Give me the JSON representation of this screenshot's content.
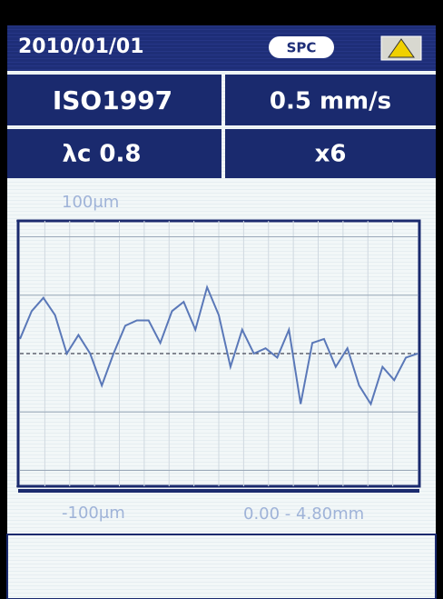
{
  "header": {
    "date": "2010/01/01",
    "mode": "SPC"
  },
  "settings": {
    "standard": "ISO1997",
    "speed": "0.5 mm/s",
    "cutoff": "λc 0.8",
    "cutoff_count": "x6"
  },
  "profile": {
    "ylim": [
      -100,
      100
    ],
    "yticks": [
      {
        "value": 100,
        "label": "100μm"
      },
      {
        "value": -100,
        "label": "-100μm"
      }
    ],
    "x_range": "0.00 - 4.80mm",
    "color": "#5a78b8",
    "values": [
      11,
      32,
      42,
      29,
      0,
      14,
      0,
      -24,
      0,
      21,
      25,
      25,
      8,
      32,
      39,
      18,
      50,
      29,
      -10,
      18,
      0,
      4,
      -3,
      18,
      -38,
      8,
      11,
      -10,
      4,
      -24,
      -38,
      -10,
      -20,
      -3,
      0
    ]
  }
}
